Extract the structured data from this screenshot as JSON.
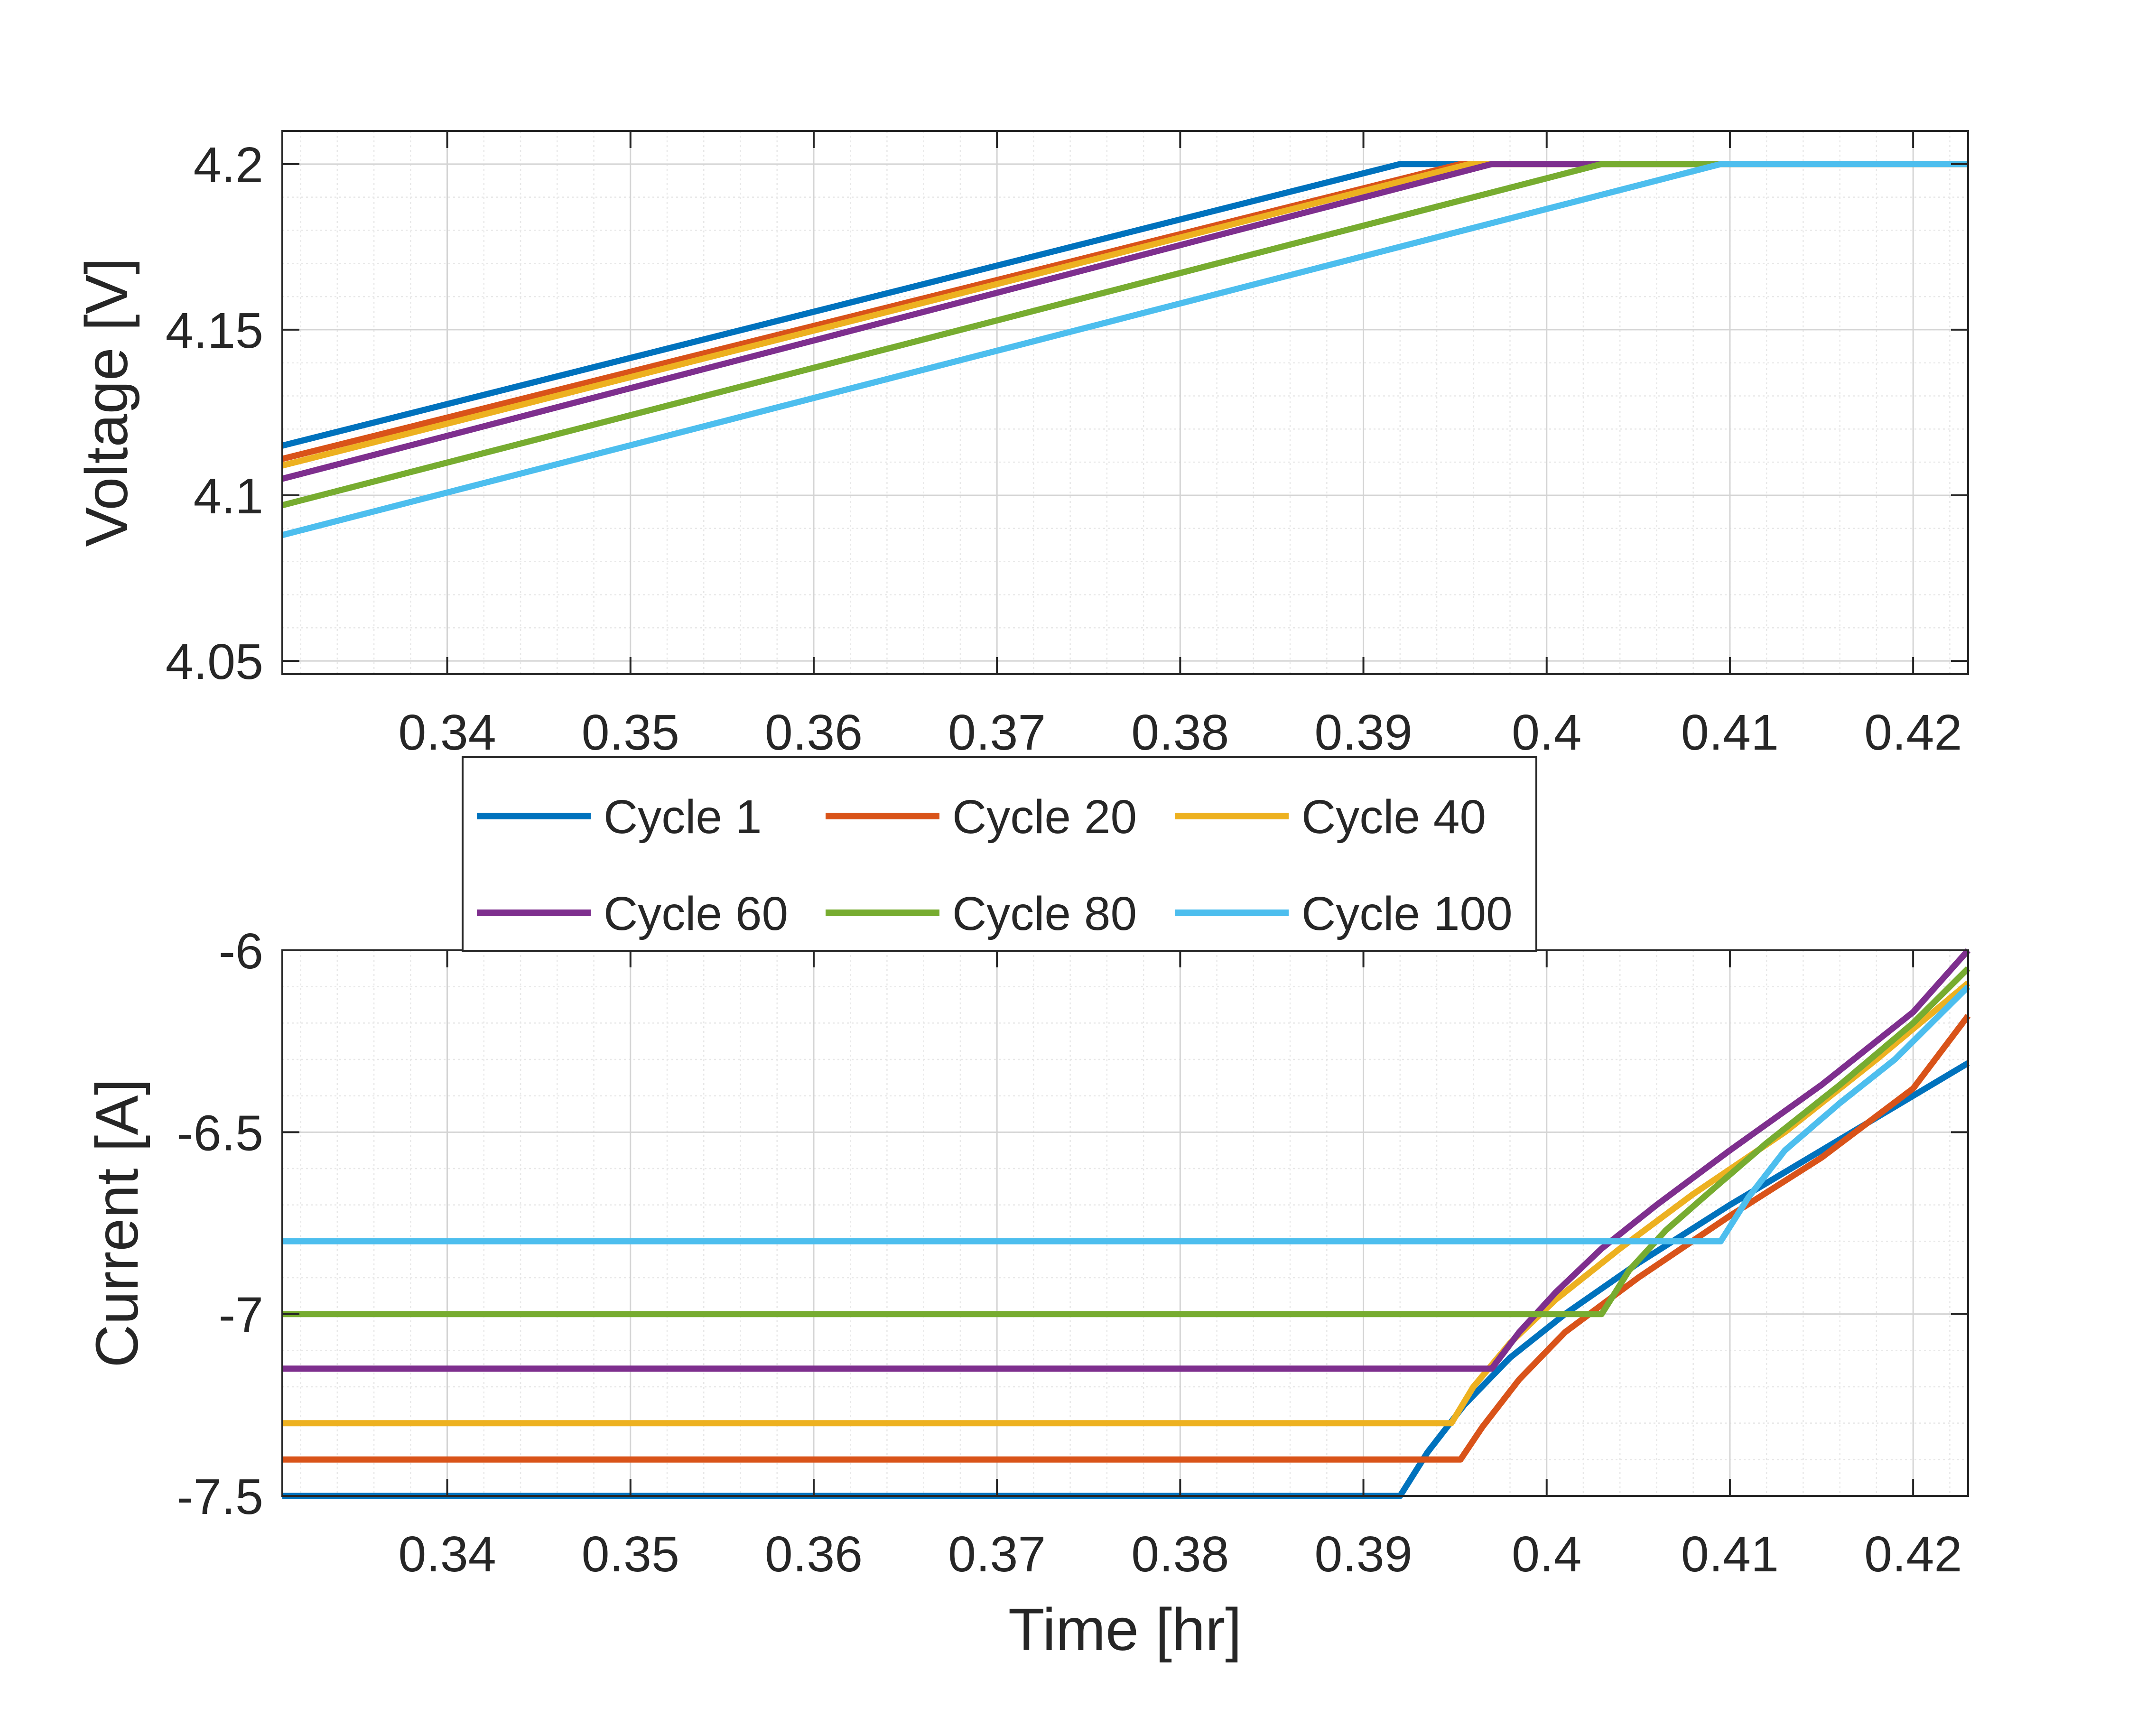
{
  "chart_data": [
    {
      "type": "line",
      "panel": "top",
      "title": "",
      "xlabel": "",
      "ylabel": "Voltage [V]",
      "xlim": [
        0.331,
        0.423
      ],
      "ylim": [
        4.046,
        4.21
      ],
      "xticks": [
        0.34,
        0.35,
        0.36,
        0.37,
        0.38,
        0.39,
        0.4,
        0.41,
        0.42
      ],
      "xtick_labels": [
        "0.34",
        "0.35",
        "0.36",
        "0.37",
        "0.38",
        "0.39",
        "0.4",
        "0.41",
        "0.42"
      ],
      "yticks": [
        4.05,
        4.1,
        4.15,
        4.2
      ],
      "ytick_labels": [
        "4.05",
        "4.1",
        "4.15",
        "4.2"
      ],
      "grid": true,
      "minor_grid": true,
      "series": [
        {
          "name": "Cycle 1",
          "color": "#0072BD",
          "points": [
            [
              0.331,
              4.115
            ],
            [
              0.392,
              4.2
            ],
            [
              0.423,
              4.2
            ]
          ]
        },
        {
          "name": "Cycle 20",
          "color": "#D95319",
          "points": [
            [
              0.331,
              4.111
            ],
            [
              0.3953,
              4.2
            ],
            [
              0.423,
              4.2
            ]
          ]
        },
        {
          "name": "Cycle 40",
          "color": "#EDB120",
          "points": [
            [
              0.331,
              4.109
            ],
            [
              0.3958,
              4.2
            ],
            [
              0.423,
              4.2
            ]
          ]
        },
        {
          "name": "Cycle 60",
          "color": "#7E2F8E",
          "points": [
            [
              0.331,
              4.105
            ],
            [
              0.397,
              4.2
            ],
            [
              0.423,
              4.2
            ]
          ]
        },
        {
          "name": "Cycle 80",
          "color": "#77AC30",
          "points": [
            [
              0.331,
              4.097
            ],
            [
              0.403,
              4.2
            ],
            [
              0.423,
              4.2
            ]
          ]
        },
        {
          "name": "Cycle 100",
          "color": "#4DBEEE",
          "points": [
            [
              0.331,
              4.088
            ],
            [
              0.4095,
              4.2
            ],
            [
              0.423,
              4.2
            ]
          ]
        }
      ]
    },
    {
      "type": "line",
      "panel": "bottom",
      "title": "",
      "xlabel": "Time [hr]",
      "ylabel": "Current [A]",
      "xlim": [
        0.331,
        0.423
      ],
      "ylim": [
        -7.5,
        -6.0
      ],
      "xticks": [
        0.34,
        0.35,
        0.36,
        0.37,
        0.38,
        0.39,
        0.4,
        0.41,
        0.42
      ],
      "xtick_labels": [
        "0.34",
        "0.35",
        "0.36",
        "0.37",
        "0.38",
        "0.39",
        "0.4",
        "0.41",
        "0.42"
      ],
      "yticks": [
        -7.5,
        -7,
        -6.5,
        -6
      ],
      "ytick_labels": [
        "-7.5",
        "-7",
        "-6.5",
        "-6"
      ],
      "grid": true,
      "minor_grid": true,
      "series": [
        {
          "name": "Cycle 1",
          "color": "#0072BD",
          "points": [
            [
              0.331,
              -7.5
            ],
            [
              0.392,
              -7.5
            ],
            [
              0.3935,
              -7.38
            ],
            [
              0.3955,
              -7.25
            ],
            [
              0.398,
              -7.12
            ],
            [
              0.401,
              -7.0
            ],
            [
              0.405,
              -6.86
            ],
            [
              0.41,
              -6.7
            ],
            [
              0.415,
              -6.55
            ],
            [
              0.42,
              -6.4
            ],
            [
              0.423,
              -6.31
            ]
          ]
        },
        {
          "name": "Cycle 20",
          "color": "#D95319",
          "points": [
            [
              0.331,
              -7.4
            ],
            [
              0.3953,
              -7.4
            ],
            [
              0.3965,
              -7.31
            ],
            [
              0.3985,
              -7.18
            ],
            [
              0.401,
              -7.05
            ],
            [
              0.405,
              -6.9
            ],
            [
              0.41,
              -6.73
            ],
            [
              0.415,
              -6.57
            ],
            [
              0.42,
              -6.38
            ],
            [
              0.423,
              -6.18
            ]
          ]
        },
        {
          "name": "Cycle 40",
          "color": "#EDB120",
          "points": [
            [
              0.331,
              -7.3
            ],
            [
              0.3948,
              -7.3
            ],
            [
              0.396,
              -7.2
            ],
            [
              0.398,
              -7.08
            ],
            [
              0.4005,
              -6.96
            ],
            [
              0.404,
              -6.82
            ],
            [
              0.408,
              -6.67
            ],
            [
              0.413,
              -6.5
            ],
            [
              0.418,
              -6.3
            ],
            [
              0.423,
              -6.09
            ]
          ]
        },
        {
          "name": "Cycle 60",
          "color": "#7E2F8E",
          "points": [
            [
              0.331,
              -7.15
            ],
            [
              0.397,
              -7.15
            ],
            [
              0.3985,
              -7.05
            ],
            [
              0.4005,
              -6.94
            ],
            [
              0.403,
              -6.82
            ],
            [
              0.406,
              -6.7
            ],
            [
              0.41,
              -6.55
            ],
            [
              0.415,
              -6.37
            ],
            [
              0.42,
              -6.17
            ],
            [
              0.423,
              -6.0
            ]
          ]
        },
        {
          "name": "Cycle 80",
          "color": "#77AC30",
          "points": [
            [
              0.331,
              -7.0
            ],
            [
              0.403,
              -7.0
            ],
            [
              0.4045,
              -6.88
            ],
            [
              0.4065,
              -6.77
            ],
            [
              0.409,
              -6.66
            ],
            [
              0.412,
              -6.53
            ],
            [
              0.416,
              -6.37
            ],
            [
              0.42,
              -6.2
            ],
            [
              0.423,
              -6.05
            ]
          ]
        },
        {
          "name": "Cycle 100",
          "color": "#4DBEEE",
          "points": [
            [
              0.331,
              -6.8
            ],
            [
              0.4095,
              -6.8
            ],
            [
              0.411,
              -6.68
            ],
            [
              0.413,
              -6.55
            ],
            [
              0.416,
              -6.42
            ],
            [
              0.419,
              -6.3
            ],
            [
              0.423,
              -6.1
            ]
          ]
        }
      ]
    }
  ],
  "legend": {
    "placement": "between panels",
    "entries": [
      {
        "label": "Cycle 1",
        "color": "#0072BD"
      },
      {
        "label": "Cycle 20",
        "color": "#D95319"
      },
      {
        "label": "Cycle 40",
        "color": "#EDB120"
      },
      {
        "label": "Cycle 60",
        "color": "#7E2F8E"
      },
      {
        "label": "Cycle 80",
        "color": "#77AC30"
      },
      {
        "label": "Cycle 100",
        "color": "#4DBEEE"
      }
    ]
  }
}
